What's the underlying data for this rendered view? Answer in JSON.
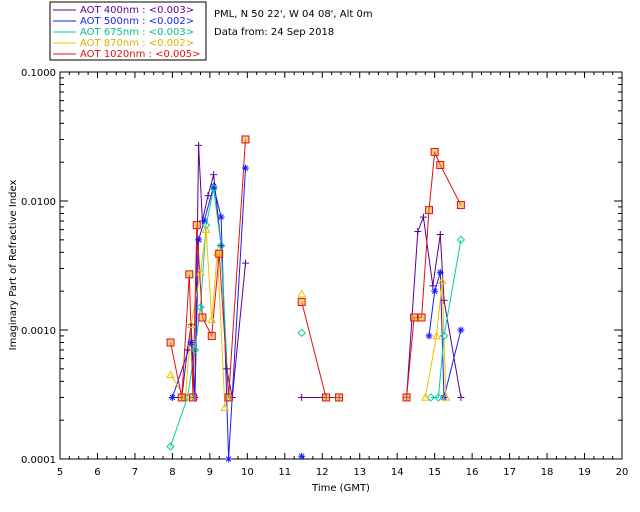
{
  "chart_data": {
    "type": "scatter",
    "title": "",
    "xlabel": "Time (GMT)",
    "ylabel": "Imaginary Part of Refractive Index",
    "xlim": [
      5,
      20
    ],
    "ylim": [
      0.0001,
      0.1
    ],
    "yscale": "log",
    "x_ticks": [
      5,
      6,
      7,
      8,
      9,
      10,
      11,
      12,
      13,
      14,
      15,
      16,
      17,
      18,
      19,
      20
    ],
    "x_tick_labels": [
      "5",
      "6",
      "7",
      "8",
      "9",
      "10",
      "11",
      "12",
      "13",
      "14",
      "15",
      "16",
      "17",
      "18",
      "19",
      "20"
    ],
    "y_ticks": [
      0.0001,
      0.001,
      0.01,
      0.1
    ],
    "y_tick_labels": [
      "0.0001",
      "0.0010",
      "0.0100",
      "0.1000"
    ],
    "grid": false,
    "legend_position": "top-left-outside",
    "annotations": [
      "PML, N 50 22', W 04 08', Alt 0m",
      "Data from: 24 Sep 2018"
    ],
    "series": [
      {
        "name": "AOT  400nm : <0.003>",
        "color": "#5a0090",
        "marker": "plus",
        "points": [
          [
            8.0,
            0.0003
          ],
          [
            8.25,
            0.0003
          ],
          [
            8.4,
            0.0007
          ],
          [
            8.5,
            0.0011
          ],
          [
            8.6,
            0.0003
          ],
          [
            8.7,
            0.027
          ],
          [
            8.8,
            0.007
          ],
          [
            8.95,
            0.011
          ],
          [
            9.1,
            0.016
          ],
          [
            9.3,
            0.0045
          ],
          [
            9.45,
            0.0005
          ],
          [
            9.6,
            0.0003
          ],
          [
            9.95,
            0.0033
          ],
          [
            11.45,
            0.0003
          ],
          [
            12.1,
            0.0003
          ],
          [
            12.45,
            0.0003
          ],
          [
            14.25,
            0.0003
          ],
          [
            14.55,
            0.0058
          ],
          [
            14.7,
            0.0075
          ],
          [
            14.95,
            0.0022
          ],
          [
            15.15,
            0.0055
          ],
          [
            15.25,
            0.0017
          ],
          [
            15.7,
            0.0003
          ]
        ]
      },
      {
        "name": "AOT  500nm : <0.002>",
        "color": "#1a1aff",
        "marker": "asterisk",
        "points": [
          [
            8.0,
            0.0003
          ],
          [
            8.5,
            0.0008
          ],
          [
            8.6,
            0.0003
          ],
          [
            8.7,
            0.005
          ],
          [
            8.85,
            0.007
          ],
          [
            9.1,
            0.013
          ],
          [
            9.3,
            0.0075
          ],
          [
            9.5,
            0.0001
          ],
          [
            9.95,
            0.018
          ],
          [
            11.45,
            0.000105
          ],
          [
            14.85,
            0.0009
          ],
          [
            15.0,
            0.002
          ],
          [
            15.15,
            0.0028
          ],
          [
            15.25,
            0.0003
          ],
          [
            15.7,
            0.001
          ]
        ]
      },
      {
        "name": "AOT  675nm : <0.003>",
        "color": "#00d0a0",
        "marker": "diamond",
        "points": [
          [
            7.95,
            0.000125
          ],
          [
            8.4,
            0.0003
          ],
          [
            8.6,
            0.0007
          ],
          [
            8.75,
            0.0015
          ],
          [
            8.9,
            0.0065
          ],
          [
            9.1,
            0.0125
          ],
          [
            9.3,
            0.0045
          ],
          [
            9.5,
            0.0003
          ],
          [
            11.45,
            0.00095
          ],
          [
            14.9,
            0.0003
          ],
          [
            15.1,
            0.0003
          ],
          [
            15.25,
            0.0009
          ],
          [
            15.7,
            0.005
          ]
        ]
      },
      {
        "name": "AOT  870nm : <0.002>",
        "color": "#f0c000",
        "marker": "triangle",
        "points": [
          [
            7.95,
            0.00045
          ],
          [
            8.35,
            0.0003
          ],
          [
            8.5,
            0.0011
          ],
          [
            8.75,
            0.0028
          ],
          [
            8.9,
            0.006
          ],
          [
            9.05,
            0.0012
          ],
          [
            9.2,
            0.004
          ],
          [
            9.4,
            0.00025
          ],
          [
            11.45,
            0.0019
          ],
          [
            14.75,
            0.0003
          ],
          [
            15.05,
            0.0009
          ],
          [
            15.2,
            0.0024
          ],
          [
            15.3,
            0.0003
          ]
        ]
      },
      {
        "name": "AOT 1020nm : <0.005>",
        "color": "#e01010",
        "marker": "square",
        "points": [
          [
            7.95,
            0.0008
          ],
          [
            8.25,
            0.0003
          ],
          [
            8.45,
            0.0027
          ],
          [
            8.55,
            0.0003
          ],
          [
            8.65,
            0.0065
          ],
          [
            8.8,
            0.00125
          ],
          [
            9.05,
            0.0009
          ],
          [
            9.25,
            0.0039
          ],
          [
            9.5,
            0.0003
          ],
          [
            9.95,
            0.03
          ],
          [
            11.45,
            0.00165
          ],
          [
            12.1,
            0.0003
          ],
          [
            12.45,
            0.0003
          ],
          [
            14.25,
            0.0003
          ],
          [
            14.45,
            0.00125
          ],
          [
            14.65,
            0.00125
          ],
          [
            14.85,
            0.0085
          ],
          [
            15.0,
            0.024
          ],
          [
            15.15,
            0.019
          ],
          [
            15.7,
            0.0093
          ]
        ]
      }
    ],
    "legend_labels": {
      "l400": "AOT  400nm : <0.003>",
      "l500": "AOT  500nm : <0.002>",
      "l675": "AOT  675nm : <0.003>",
      "l870": "AOT  870nm : <0.002>",
      "l1020": "AOT 1020nm : <0.005>"
    },
    "info": {
      "site": "PML, N 50 22', W 04 08', Alt 0m",
      "date": "Data from: 24 Sep 2018"
    }
  }
}
